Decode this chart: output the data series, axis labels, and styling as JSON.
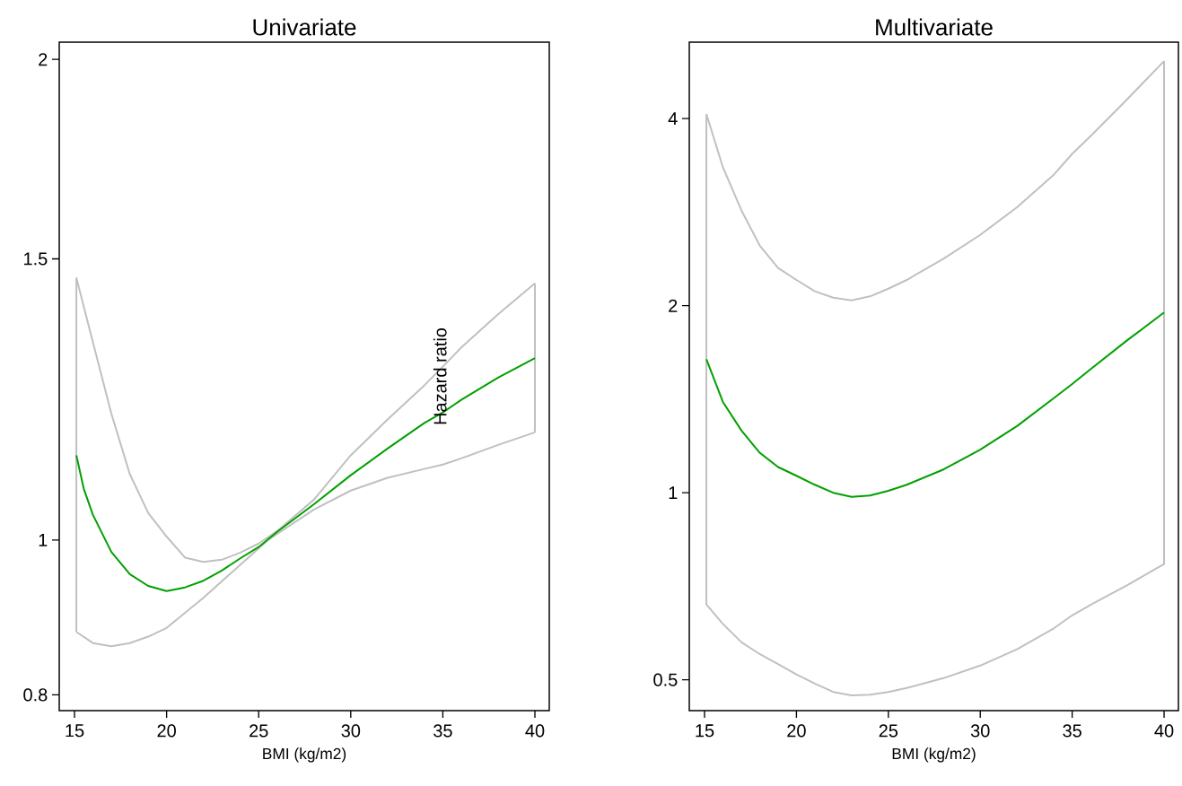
{
  "chart_data": [
    {
      "type": "line",
      "title": "Univariate",
      "xlabel": "BMI (kg/m2)",
      "ylabel": "Hazard ratio",
      "log": "y",
      "xlim": [
        14.17,
        40.78
      ],
      "ylim": [
        0.782,
        2.05
      ],
      "xticks": [
        15,
        20,
        25,
        30,
        35,
        40
      ],
      "yticks": [
        0.8,
        1,
        1.5,
        2
      ],
      "series": [
        {
          "color": "#c0c0c0",
          "x": [
            15.1,
            16,
            17,
            18,
            19,
            20,
            21,
            22,
            23,
            24,
            25,
            26,
            28,
            30,
            32,
            34,
            35,
            36,
            38,
            40
          ],
          "values": [
            1.46,
            1.33,
            1.2,
            1.1,
            1.04,
            1.005,
            0.975,
            0.969,
            0.972,
            0.982,
            0.995,
            1.013,
            1.06,
            1.13,
            1.19,
            1.25,
            1.284,
            1.32,
            1.385,
            1.448
          ]
        },
        {
          "color": "#c0c0c0",
          "x": [
            15.1,
            16,
            17,
            18,
            19,
            20,
            22,
            24,
            25.5,
            28,
            30,
            32,
            34,
            35,
            36,
            38,
            40
          ],
          "values": [
            0.876,
            0.862,
            0.858,
            0.862,
            0.87,
            0.881,
            0.92,
            0.965,
            1.0,
            1.045,
            1.074,
            1.094,
            1.108,
            1.115,
            1.125,
            1.147,
            1.168
          ]
        },
        {
          "color": "#c0c0c0",
          "x": [
            15.1,
            15.1
          ],
          "values": [
            0.876,
            1.46
          ]
        },
        {
          "color": "#c0c0c0",
          "x": [
            40,
            40
          ],
          "values": [
            1.168,
            1.448
          ]
        },
        {
          "color": "#00a000",
          "x": [
            15.1,
            15.5,
            16,
            17,
            18,
            19,
            20,
            21,
            22,
            23,
            24,
            25,
            26,
            28,
            30,
            32,
            34,
            35,
            36,
            38,
            40
          ],
          "values": [
            1.13,
            1.077,
            1.037,
            0.983,
            0.952,
            0.936,
            0.929,
            0.934,
            0.943,
            0.957,
            0.974,
            0.99,
            1.012,
            1.053,
            1.098,
            1.141,
            1.184,
            1.202,
            1.224,
            1.264,
            1.3
          ]
        }
      ]
    },
    {
      "type": "line",
      "title": "Multivariate",
      "xlabel": "BMI (kg/m2)",
      "log": "y",
      "xlim": [
        14.17,
        40.78
      ],
      "ylim": [
        0.446,
        5.31
      ],
      "xticks": [
        15,
        20,
        25,
        30,
        35,
        40
      ],
      "yticks": [
        0.5,
        1,
        2,
        4
      ],
      "series": [
        {
          "color": "#c0c0c0",
          "x": [
            15.1,
            16,
            17,
            18,
            19,
            20,
            21,
            22,
            23,
            24,
            25,
            26,
            28,
            30,
            32,
            34,
            35,
            36,
            38,
            40
          ],
          "values": [
            4.07,
            3.34,
            2.85,
            2.5,
            2.3,
            2.2,
            2.11,
            2.06,
            2.04,
            2.07,
            2.13,
            2.2,
            2.38,
            2.6,
            2.88,
            3.25,
            3.51,
            3.75,
            4.3,
            4.95
          ]
        },
        {
          "color": "#c0c0c0",
          "x": [
            15.1,
            15.1,
            16,
            17,
            18,
            19,
            20,
            21,
            22,
            23,
            24,
            25,
            26,
            28,
            30,
            32,
            34,
            35,
            36,
            38,
            40,
            40
          ],
          "values": [
            4.07,
            0.661,
            0.615,
            0.575,
            0.55,
            0.53,
            0.51,
            0.493,
            0.478,
            0.472,
            0.473,
            0.478,
            0.485,
            0.503,
            0.527,
            0.56,
            0.605,
            0.635,
            0.66,
            0.71,
            0.768,
            4.95
          ]
        },
        {
          "color": "#00a000",
          "x": [
            15.1,
            16,
            17,
            18,
            19,
            20,
            21,
            22,
            23,
            24,
            25,
            26,
            28,
            30,
            32,
            34,
            35,
            36,
            38,
            40
          ],
          "values": [
            1.64,
            1.4,
            1.26,
            1.16,
            1.1,
            1.065,
            1.03,
            1.0,
            0.985,
            0.99,
            1.007,
            1.03,
            1.09,
            1.173,
            1.28,
            1.42,
            1.496,
            1.58,
            1.76,
            1.95
          ]
        }
      ]
    }
  ]
}
